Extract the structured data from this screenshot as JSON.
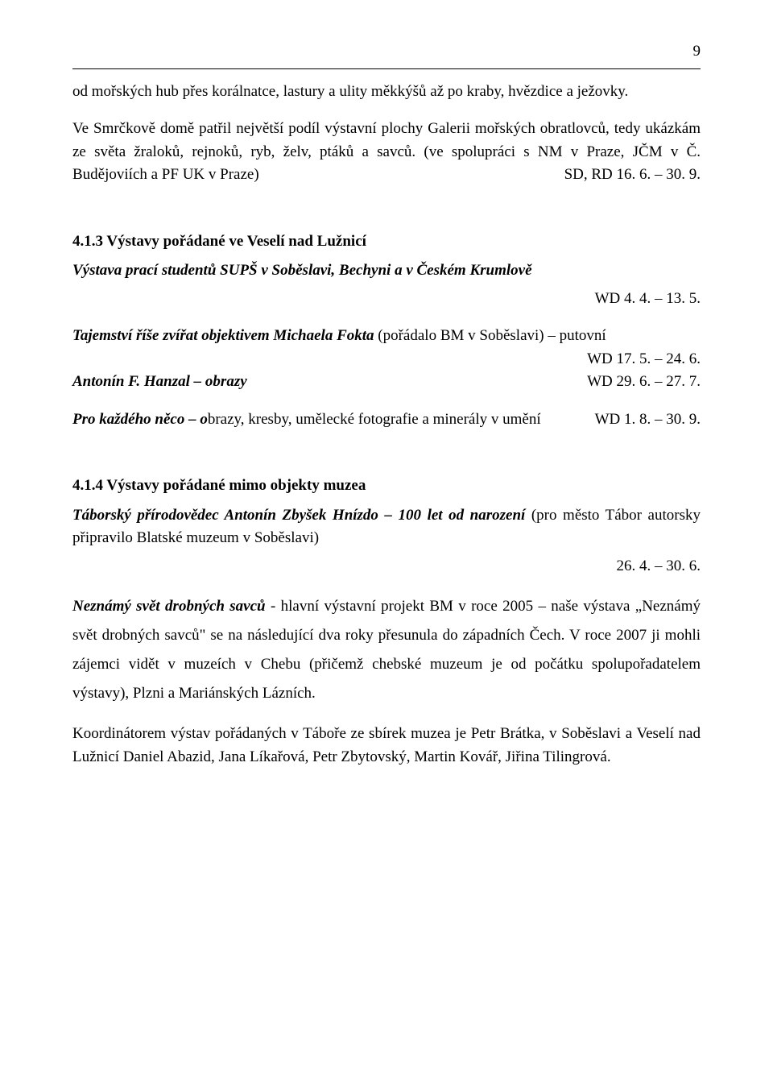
{
  "page_number": "9",
  "para1": "od mořských hub přes korálnatce, lastury a ulity měkkýšů až po kraby, hvězdice a ježovky.",
  "para2": "Ve Smrčkově domě patřil největší podíl výstavní plochy Galerii mořských obratlovců, tedy ukázkám ze světa žraloků, rejnoků, ryb, želv, ptáků a savců. (ve spolupráci s NM v Praze, JČM v Č. Budějoviích a PF UK v Praze)",
  "para2_tail": "SD, RD   16. 6. – 30. 9.",
  "sec413_head": "4.1.3  Výstavy pořádané ve Veselí nad Lužnicí",
  "sec413_sub": "Výstava prací studentů SUPŠ v Soběslavi, Bechyni a v Českém Krumlově",
  "sec413_sub_tail": "WD   4. 4. – 13. 5.",
  "entry1_a": "Tajemství říše zvířat objektivem Michaela Fokta",
  "entry1_b": " (pořádalo BM v Soběslavi) – putovní",
  "entry1_tail": "WD   17. 5. – 24. 6.",
  "entry2_a": "Antonín F. Hanzal – obrazy",
  "entry2_tail": "WD   29. 6. – 27. 7.",
  "entry3_a": "Pro každého něco – o",
  "entry3_b": "brazy, kresby, umělecké fotografie a minerály v umění",
  "entry3_tail": "WD   1. 8. – 30. 9.",
  "sec414_head": "4.1.4  Výstavy pořádané mimo objekty muzea",
  "sec414_e1_a": "Táborský přírodovědec Antonín Zbyšek Hnízdo – 100 let od narození",
  "sec414_e1_b": " (pro město Tábor autorsky připravilo Blatské muzeum v Soběslavi)",
  "sec414_e1_tail": "26. 4. – 30. 6.",
  "sec414_e2_a": "Neznámý svět drobných savců",
  "sec414_e2_b": " - hlavní výstavní projekt BM v roce 2005 – naše výstava „Neznámý svět drobných savců\" se na následující dva roky přesunula do západních Čech. V roce 2007 ji mohli zájemci vidět v muzeích v Chebu (přičemž chebské muzeum je od počátku spolupořadatelem výstavy), Plzni a Mariánských Lázních.",
  "coord": "Koordinátorem výstav pořádaných v Táboře ze sbírek muzea je Petr Brátka, v Soběslavi a Veselí nad Lužnicí Daniel Abazid, Jana Líkařová, Petr Zbytovský, Martin Kovář, Jiřina Tilingrová."
}
